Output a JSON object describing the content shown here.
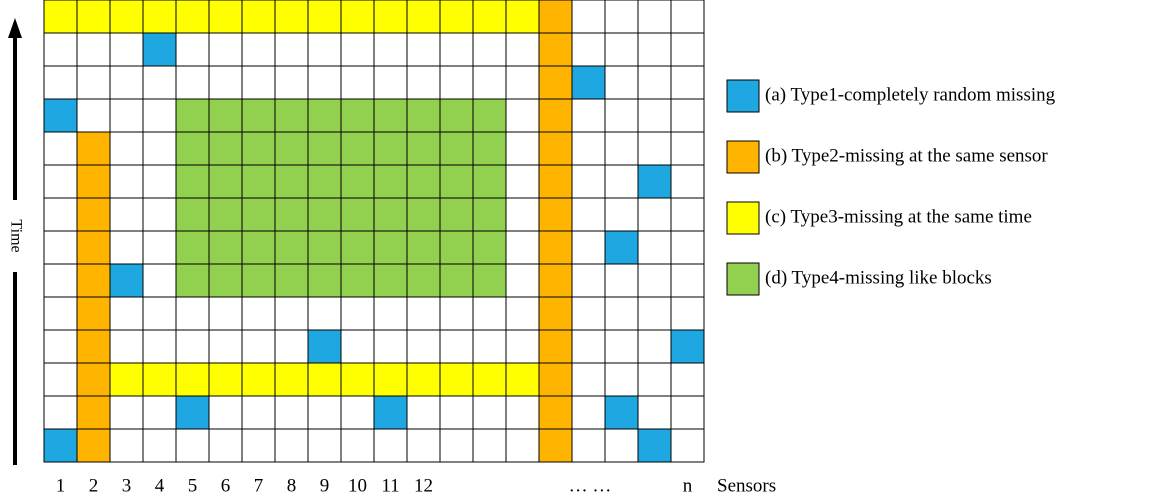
{
  "axis": {
    "time_label": "Time",
    "sensors_label": "Sensors",
    "sensor_labels": [
      "1",
      "2",
      "3",
      "4",
      "5",
      "6",
      "7",
      "8",
      "9",
      "10",
      "11",
      "12",
      "… …",
      "n"
    ]
  },
  "legend": [
    {
      "label": "(a) Type1-completely random missing",
      "color": "#1ea7e1"
    },
    {
      "label": "(b) Type2-missing at the same sensor",
      "color": "#ffb400"
    },
    {
      "label": "(c) Type3-missing at the same time",
      "color": "#ffff00"
    },
    {
      "label": "(d) Type4-missing like blocks",
      "color": "#92d050"
    }
  ]
}
